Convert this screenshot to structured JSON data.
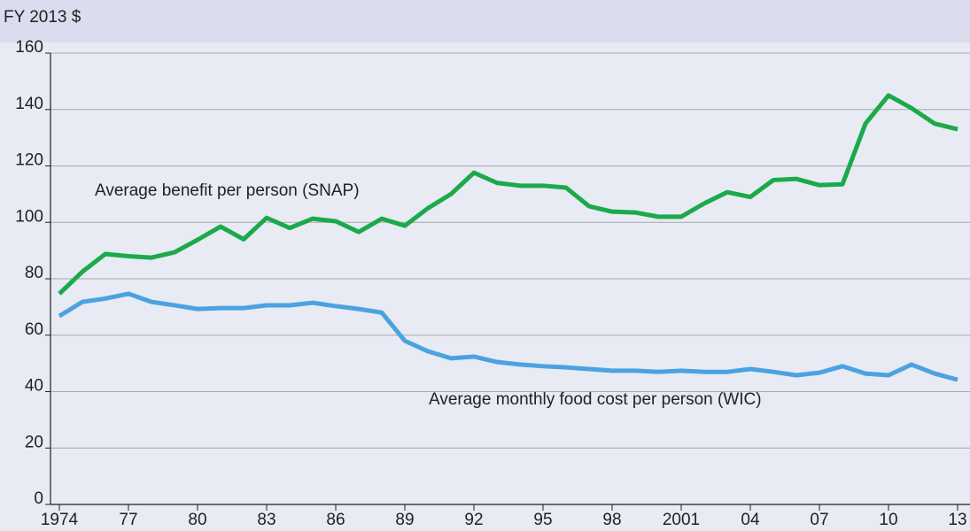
{
  "chart_data": {
    "type": "line",
    "y_label": "FY 2013 $",
    "x": [
      1974,
      1975,
      1976,
      1977,
      1978,
      1979,
      1980,
      1981,
      1982,
      1983,
      1984,
      1985,
      1986,
      1987,
      1988,
      1989,
      1990,
      1991,
      1992,
      1993,
      1994,
      1995,
      1996,
      1997,
      1998,
      1999,
      2000,
      2001,
      2002,
      2003,
      2004,
      2005,
      2006,
      2007,
      2008,
      2009,
      2010,
      2011,
      2012,
      2013
    ],
    "series": [
      {
        "name": "Average benefit per person (SNAP)",
        "color": "#1aaa4a",
        "values": [
          74.7,
          82.5,
          88.8,
          88,
          87.5,
          89.4,
          93.8,
          98.5,
          94,
          101.6,
          98,
          101.3,
          100.4,
          96.6,
          101.3,
          98.8,
          105,
          110,
          117.6,
          114,
          113,
          113,
          112.3,
          105.7,
          103.8,
          103.5,
          102,
          102,
          106.7,
          110.7,
          109,
          115,
          115.4,
          113.2,
          113.5,
          135,
          145,
          140.5,
          135,
          133
        ]
      },
      {
        "name": "Average monthly food cost per person (WIC)",
        "color": "#4aa3df",
        "values": [
          66.8,
          71.8,
          73,
          74.7,
          71.8,
          70.6,
          69.3,
          69.6,
          69.6,
          70.6,
          70.6,
          71.5,
          70.3,
          69.3,
          68,
          58,
          54.3,
          51.8,
          52.4,
          50.5,
          49.6,
          49,
          48.6,
          48,
          47.4,
          47.4,
          47,
          47.4,
          47,
          47,
          48,
          47,
          45.8,
          46.7,
          49,
          46.4,
          45.8,
          49.6,
          46.4,
          44.2
        ]
      }
    ],
    "xlim": [
      1974,
      2013
    ],
    "xticks": [
      1974,
      {
        "value": 1977,
        "label": "77"
      },
      {
        "value": 1980,
        "label": "80"
      },
      {
        "value": 1983,
        "label": "83"
      },
      {
        "value": 1986,
        "label": "86"
      },
      {
        "value": 1989,
        "label": "89"
      },
      {
        "value": 1992,
        "label": "92"
      },
      {
        "value": 1995,
        "label": "95"
      },
      {
        "value": 1998,
        "label": "98"
      },
      2001,
      {
        "value": 2004,
        "label": "04"
      },
      {
        "value": 2007,
        "label": "07"
      },
      {
        "value": 2010,
        "label": "10"
      },
      {
        "value": 2013,
        "label": "13"
      }
    ],
    "ylim": [
      0,
      160
    ],
    "yticks": [
      0,
      20,
      40,
      60,
      80,
      100,
      120,
      140,
      160
    ],
    "grid": true
  }
}
